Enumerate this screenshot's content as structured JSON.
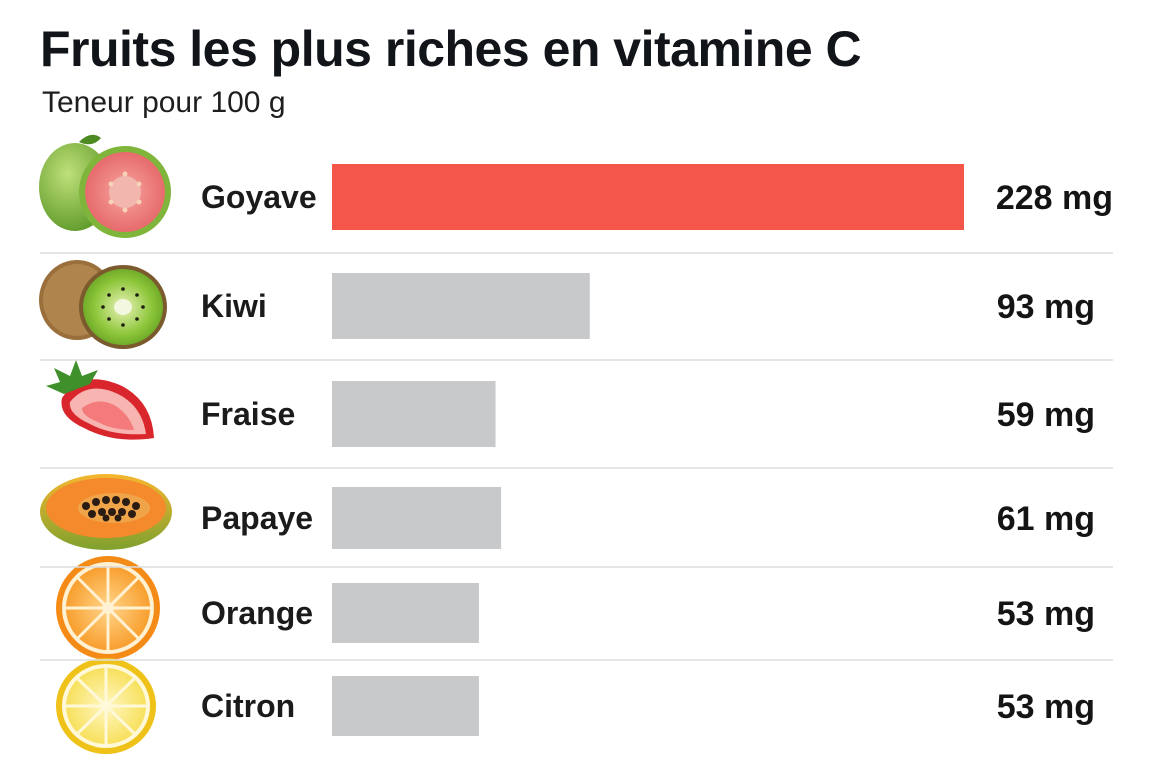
{
  "chart_data": {
    "type": "bar",
    "orientation": "horizontal",
    "title": "Fruits les plus riches en vitamine C",
    "subtitle": "Teneur pour 100 g",
    "unit": "mg",
    "categories": [
      "Goyave",
      "Kiwi",
      "Fraise",
      "Papaye",
      "Orange",
      "Citron"
    ],
    "values": [
      228,
      93,
      59,
      61,
      53,
      53
    ],
    "value_labels": [
      "228 mg",
      "93 mg",
      "59 mg",
      "61 mg",
      "53 mg",
      "53 mg"
    ],
    "icons": [
      "guava-icon",
      "kiwi-icon",
      "strawberry-icon",
      "papaya-icon",
      "orange-icon",
      "lemon-icon"
    ],
    "xlim": [
      0,
      228
    ],
    "grid": false,
    "legend": "none",
    "colors": {
      "highlight": "#f4564a",
      "bar": "#c8c9cb",
      "highlight_text": "#f4564a",
      "text": "#141414",
      "divider": "#dedede"
    }
  }
}
